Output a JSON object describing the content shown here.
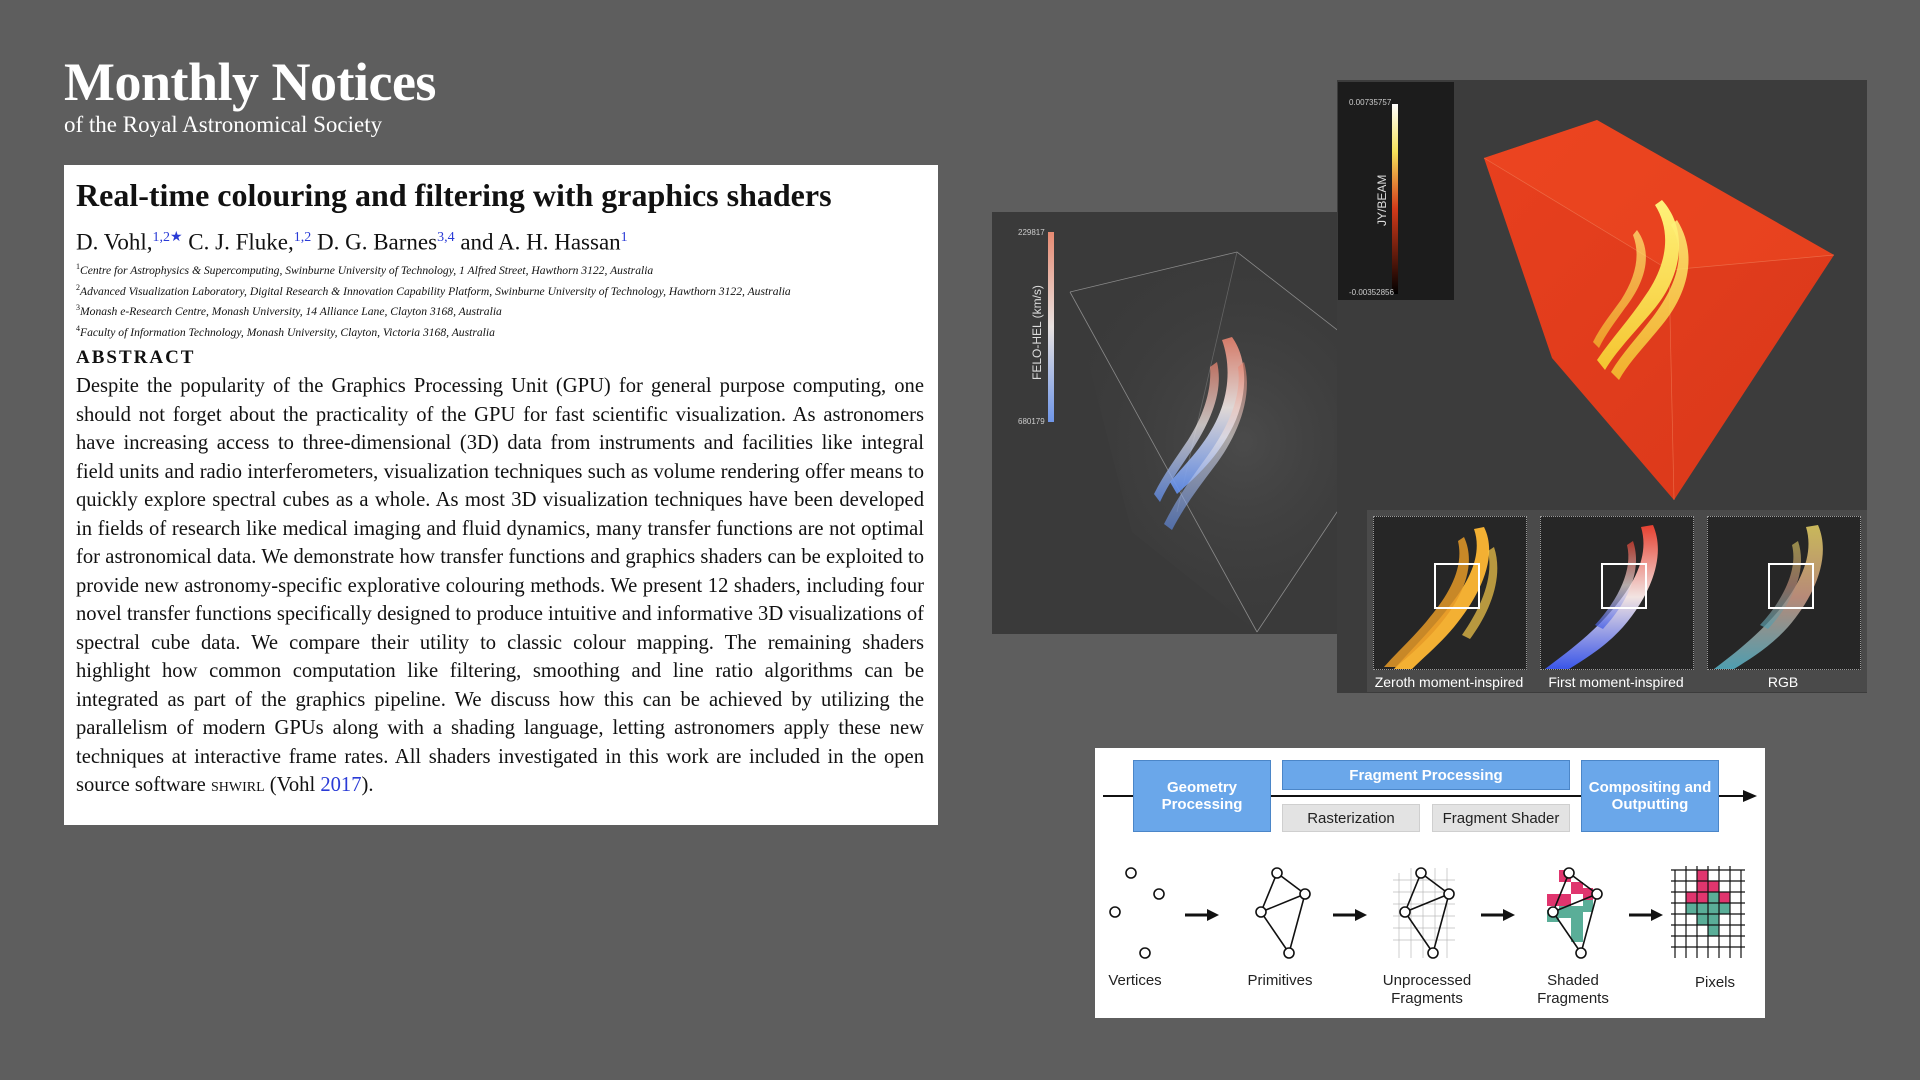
{
  "journal": {
    "title": "Monthly Notices",
    "subtitle": "of the Royal Astronomical Society"
  },
  "paper": {
    "title": "Real-time colouring and filtering with graphics shaders",
    "authors": [
      {
        "name": "D. Vohl,",
        "sup": "1,2★"
      },
      {
        "name": " C. J. Fluke,",
        "sup": "1,2"
      },
      {
        "name": " D. G. Barnes",
        "sup": "3,4"
      },
      {
        "name": " and A. H. Hassan",
        "sup": "1"
      }
    ],
    "affiliations": [
      {
        "num": "1",
        "text": "Centre for Astrophysics & Supercomputing, Swinburne University of Technology, 1 Alfred Street, Hawthorn 3122, Australia"
      },
      {
        "num": "2",
        "text": "Advanced Visualization Laboratory, Digital Research & Innovation Capability Platform, Swinburne University of Technology, Hawthorn 3122, Australia"
      },
      {
        "num": "3",
        "text": "Monash e-Research Centre, Monash University, 14 Alliance Lane, Clayton 3168, Australia"
      },
      {
        "num": "4",
        "text": "Faculty of Information Technology, Monash University, Clayton, Victoria 3168, Australia"
      }
    ],
    "abstract_heading": "ABSTRACT",
    "abstract_body": "Despite the popularity of the Graphics Processing Unit (GPU) for general purpose computing, one should not forget about the practicality of the GPU for fast scientific visualization. As astronomers have increasing access to three-dimensional (3D) data from instruments and facilities like integral field units and radio interferometers, visualization techniques such as volume rendering offer means to quickly explore spectral cubes as a whole. As most 3D visualization techniques have been developed in fields of research like medical imaging and fluid dynamics, many transfer functions are not optimal for astronomical data. We demonstrate how transfer functions and graphics shaders can be exploited to provide new astronomy-specific explorative colouring methods. We present 12 shaders, including four novel transfer functions specifically designed to produce intuitive and informative 3D visualizations of spectral cube data. We compare their utility to classic colour mapping. The remaining shaders highlight how common computation like filtering, smoothing and line ratio algorithms can be integrated as part of the graphics pipeline. We discuss how this can be achieved by utilizing the parallelism of modern GPUs along with a shading language, letting astronomers apply these new techniques at interactive frame rates. All shaders investigated in this work are included in the open source software ",
    "software": "shwirl",
    "cite_open": " (Vohl ",
    "cite_year": "2017",
    "cite_close": ")."
  },
  "left_render": {
    "colorbar_label": "FELO-HEL (km/s)",
    "cb_max": "229817",
    "cb_min": "680179"
  },
  "right_render": {
    "colorbar_label": "JY/BEAM",
    "cb_max": "0.00735757",
    "cb_min": "-0.00352856"
  },
  "thumbnails": [
    {
      "caption": "Zeroth moment-inspired"
    },
    {
      "caption": "First moment-inspired"
    },
    {
      "caption": "RGB"
    }
  ],
  "pipeline": {
    "geometry": "Geometry Processing",
    "fragment": "Fragment Processing",
    "composite": "Compositing and Outputting",
    "raster": "Rasterization",
    "fshader": "Fragment Shader",
    "stages": [
      "Vertices",
      "Primitives",
      "Unprocessed Fragments",
      "Shaded Fragments",
      "Pixels"
    ]
  },
  "colors": {
    "background": "#5e5e5e",
    "link": "#2a3bd6",
    "stage_blue": "#6aa7ea",
    "shaded_pink": "#e0356e",
    "shaded_teal": "#5aae98"
  }
}
